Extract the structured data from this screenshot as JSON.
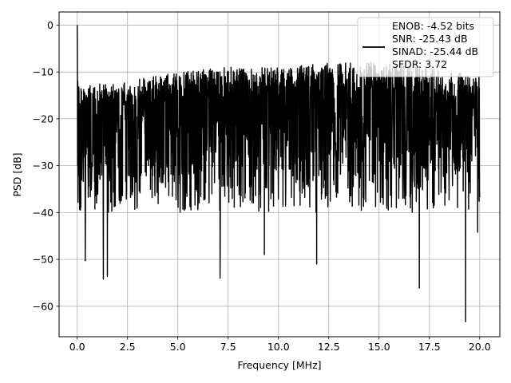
{
  "chart_data": {
    "type": "line",
    "title": "",
    "xlabel": "Frequency [MHz]",
    "ylabel": "PSD [dB]",
    "xlim": [
      -0.9,
      21.0
    ],
    "ylim": [
      -66.5,
      2.8
    ],
    "grid": true,
    "legend_position": "top-right",
    "xticks": [
      0.0,
      2.5,
      5.0,
      7.5,
      10.0,
      12.5,
      15.0,
      17.5,
      20.0
    ],
    "xtick_labels": [
      "0.0",
      "2.5",
      "5.0",
      "7.5",
      "10.0",
      "12.5",
      "15.0",
      "17.5",
      "20.0"
    ],
    "yticks": [
      0,
      -10,
      -20,
      -30,
      -40,
      -50,
      -60
    ],
    "ytick_labels": [
      "0",
      "−10",
      "−20",
      "−30",
      "−40",
      "−50",
      "−60"
    ],
    "series": [
      {
        "name": "ENOB: -4.52 bits\nSNR: -25.43 dB\nSINAD: -25.44 dB\nSFDR: 3.72",
        "color": "#000000",
        "x_range": [
          0.0,
          20.0
        ],
        "points": 2000,
        "peak": {
          "x": 0.0,
          "y": 0.0
        },
        "envelope_top": [
          [
            0.05,
            -13
          ],
          [
            2.5,
            -12
          ],
          [
            5.0,
            -10
          ],
          [
            7.5,
            -9
          ],
          [
            10.0,
            -9
          ],
          [
            12.5,
            -8
          ],
          [
            15.0,
            -8
          ],
          [
            17.5,
            -9
          ],
          [
            20.0,
            -11
          ]
        ],
        "typical_floor": -35,
        "notable_dips": [
          {
            "x": 0.4,
            "y": -50.3
          },
          {
            "x": 1.3,
            "y": -54.2
          },
          {
            "x": 1.5,
            "y": -53.6
          },
          {
            "x": 7.1,
            "y": -54.0
          },
          {
            "x": 9.3,
            "y": -49.0
          },
          {
            "x": 11.9,
            "y": -51.0
          },
          {
            "x": 17.0,
            "y": -56.1
          },
          {
            "x": 19.3,
            "y": -63.3
          },
          {
            "x": 19.9,
            "y": -44.2
          }
        ]
      }
    ],
    "legend_lines": [
      "ENOB: -4.52 bits",
      "SNR: -25.43 dB",
      "SINAD: -25.44 dB",
      "SFDR: 3.72"
    ]
  }
}
